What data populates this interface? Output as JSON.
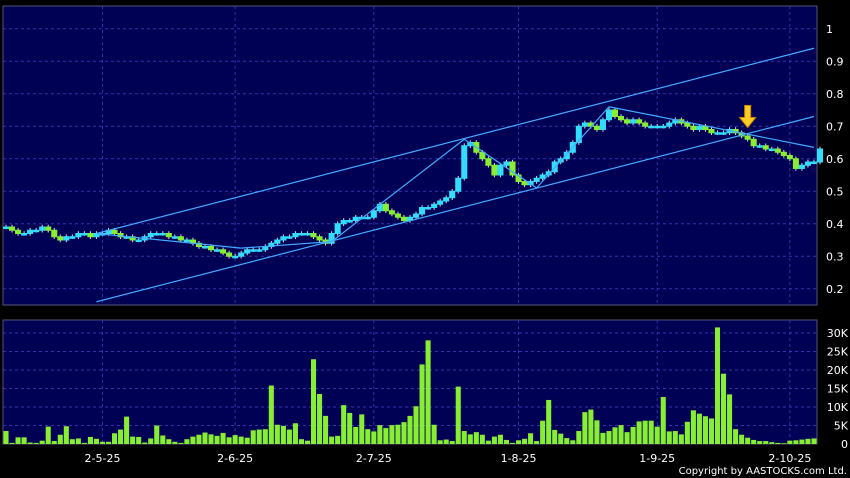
{
  "copyright": "Copyright by AASTOCKS.com Ltd.",
  "chart_data": [
    {
      "type": "candlestick",
      "panel": "price",
      "y_ticks": [
        "1",
        "0.9",
        "0.8",
        "0.7",
        "0.6",
        "0.5",
        "0.4",
        "0.3",
        "0.2"
      ],
      "y_tick_values": [
        1.0,
        0.9,
        0.8,
        0.7,
        0.6,
        0.5,
        0.4,
        0.3,
        0.2
      ],
      "ylim": [
        0.15,
        1.07
      ],
      "x_labels": [
        "2-5-25",
        "2-6-25",
        "2-7-25",
        "1-8-25",
        "1-9-25",
        "2-10-25"
      ],
      "x_label_bar_index": [
        16,
        38,
        61,
        85,
        108,
        130
      ],
      "bar_count": 135,
      "grid": true,
      "colors": {
        "background": "#000055",
        "up": "#33ddff",
        "down": "#88ee33",
        "trend": "#44aaff",
        "grid": "#3333aa",
        "arrow": "#ffcc22"
      },
      "close": [
        0.39,
        0.38,
        0.37,
        0.37,
        0.38,
        0.38,
        0.39,
        0.38,
        0.36,
        0.35,
        0.36,
        0.36,
        0.37,
        0.37,
        0.36,
        0.37,
        0.37,
        0.38,
        0.37,
        0.36,
        0.36,
        0.35,
        0.35,
        0.36,
        0.37,
        0.37,
        0.37,
        0.36,
        0.36,
        0.35,
        0.35,
        0.34,
        0.33,
        0.33,
        0.32,
        0.32,
        0.31,
        0.3,
        0.3,
        0.31,
        0.32,
        0.32,
        0.32,
        0.33,
        0.34,
        0.35,
        0.36,
        0.36,
        0.37,
        0.37,
        0.37,
        0.36,
        0.35,
        0.34,
        0.37,
        0.4,
        0.41,
        0.41,
        0.42,
        0.42,
        0.42,
        0.44,
        0.46,
        0.44,
        0.43,
        0.42,
        0.41,
        0.42,
        0.43,
        0.45,
        0.45,
        0.46,
        0.47,
        0.48,
        0.5,
        0.54,
        0.64,
        0.65,
        0.62,
        0.6,
        0.58,
        0.55,
        0.58,
        0.59,
        0.55,
        0.53,
        0.52,
        0.53,
        0.54,
        0.55,
        0.56,
        0.59,
        0.6,
        0.62,
        0.65,
        0.7,
        0.71,
        0.7,
        0.69,
        0.72,
        0.75,
        0.73,
        0.72,
        0.71,
        0.72,
        0.71,
        0.7,
        0.7,
        0.7,
        0.7,
        0.71,
        0.72,
        0.71,
        0.7,
        0.69,
        0.7,
        0.69,
        0.68,
        0.68,
        0.68,
        0.69,
        0.68,
        0.67,
        0.66,
        0.64,
        0.64,
        0.63,
        0.63,
        0.62,
        0.61,
        0.6,
        0.57,
        0.58,
        0.59,
        0.59,
        0.63
      ],
      "annotations": {
        "arrow_bar_index": 123,
        "arrow_price": 0.69
      },
      "trend_lines": [
        {
          "from": [
            15,
            0.37
          ],
          "to": [
            134,
            0.94
          ]
        },
        {
          "from": [
            15,
            0.16
          ],
          "to": [
            134,
            0.73
          ]
        },
        {
          "from": [
            15,
            0.37
          ],
          "to": [
            39,
            0.325
          ]
        },
        {
          "from": [
            39,
            0.325
          ],
          "to": [
            54,
            0.345
          ]
        },
        {
          "from": [
            54,
            0.345
          ],
          "to": [
            76,
            0.66
          ]
        },
        {
          "from": [
            76,
            0.66
          ],
          "to": [
            88,
            0.51
          ]
        },
        {
          "from": [
            88,
            0.51
          ],
          "to": [
            100,
            0.76
          ]
        },
        {
          "from": [
            100,
            0.76
          ],
          "to": [
            134,
            0.635
          ]
        }
      ]
    },
    {
      "type": "bar",
      "panel": "volume",
      "y_ticks": [
        "30K",
        "25K",
        "20K",
        "15K",
        "10K",
        "5K",
        "0"
      ],
      "y_tick_values": [
        30000,
        25000,
        20000,
        15000,
        10000,
        5000,
        0
      ],
      "ylim": [
        0,
        33500
      ],
      "values": [
        3500,
        300,
        1800,
        1800,
        400,
        300,
        900,
        4700,
        800,
        2500,
        4800,
        1300,
        1500,
        300,
        1900,
        1400,
        600,
        600,
        2900,
        3900,
        7400,
        2000,
        1900,
        400,
        1500,
        5000,
        2300,
        1300,
        600,
        300,
        1300,
        2000,
        2500,
        3100,
        2600,
        2200,
        3000,
        1800,
        2400,
        2000,
        1700,
        3700,
        3900,
        4000,
        15800,
        5200,
        4900,
        3900,
        5600,
        1300,
        900,
        22900,
        13500,
        7600,
        2000,
        2200,
        10500,
        8400,
        4600,
        8000,
        4000,
        3400,
        5100,
        4300,
        5100,
        5200,
        5900,
        7600,
        10200,
        21500,
        28000,
        5200,
        1000,
        1200,
        800,
        15500,
        3500,
        2600,
        3200,
        2500,
        900,
        2000,
        2500,
        1100,
        300,
        1000,
        1400,
        2900,
        800,
        6300,
        11900,
        3800,
        2800,
        1600,
        1000,
        3500,
        8600,
        9300,
        6400,
        3000,
        3500,
        4500,
        5100,
        3200,
        4600,
        6100,
        6300,
        6300,
        4700,
        12700,
        3400,
        3500,
        2600,
        6000,
        9100,
        8200,
        7500,
        6900,
        31500,
        19000,
        13400,
        4000,
        2500,
        1700,
        1100,
        800,
        800,
        500,
        300,
        200,
        900,
        1000,
        1200,
        1400,
        1500
      ]
    }
  ]
}
